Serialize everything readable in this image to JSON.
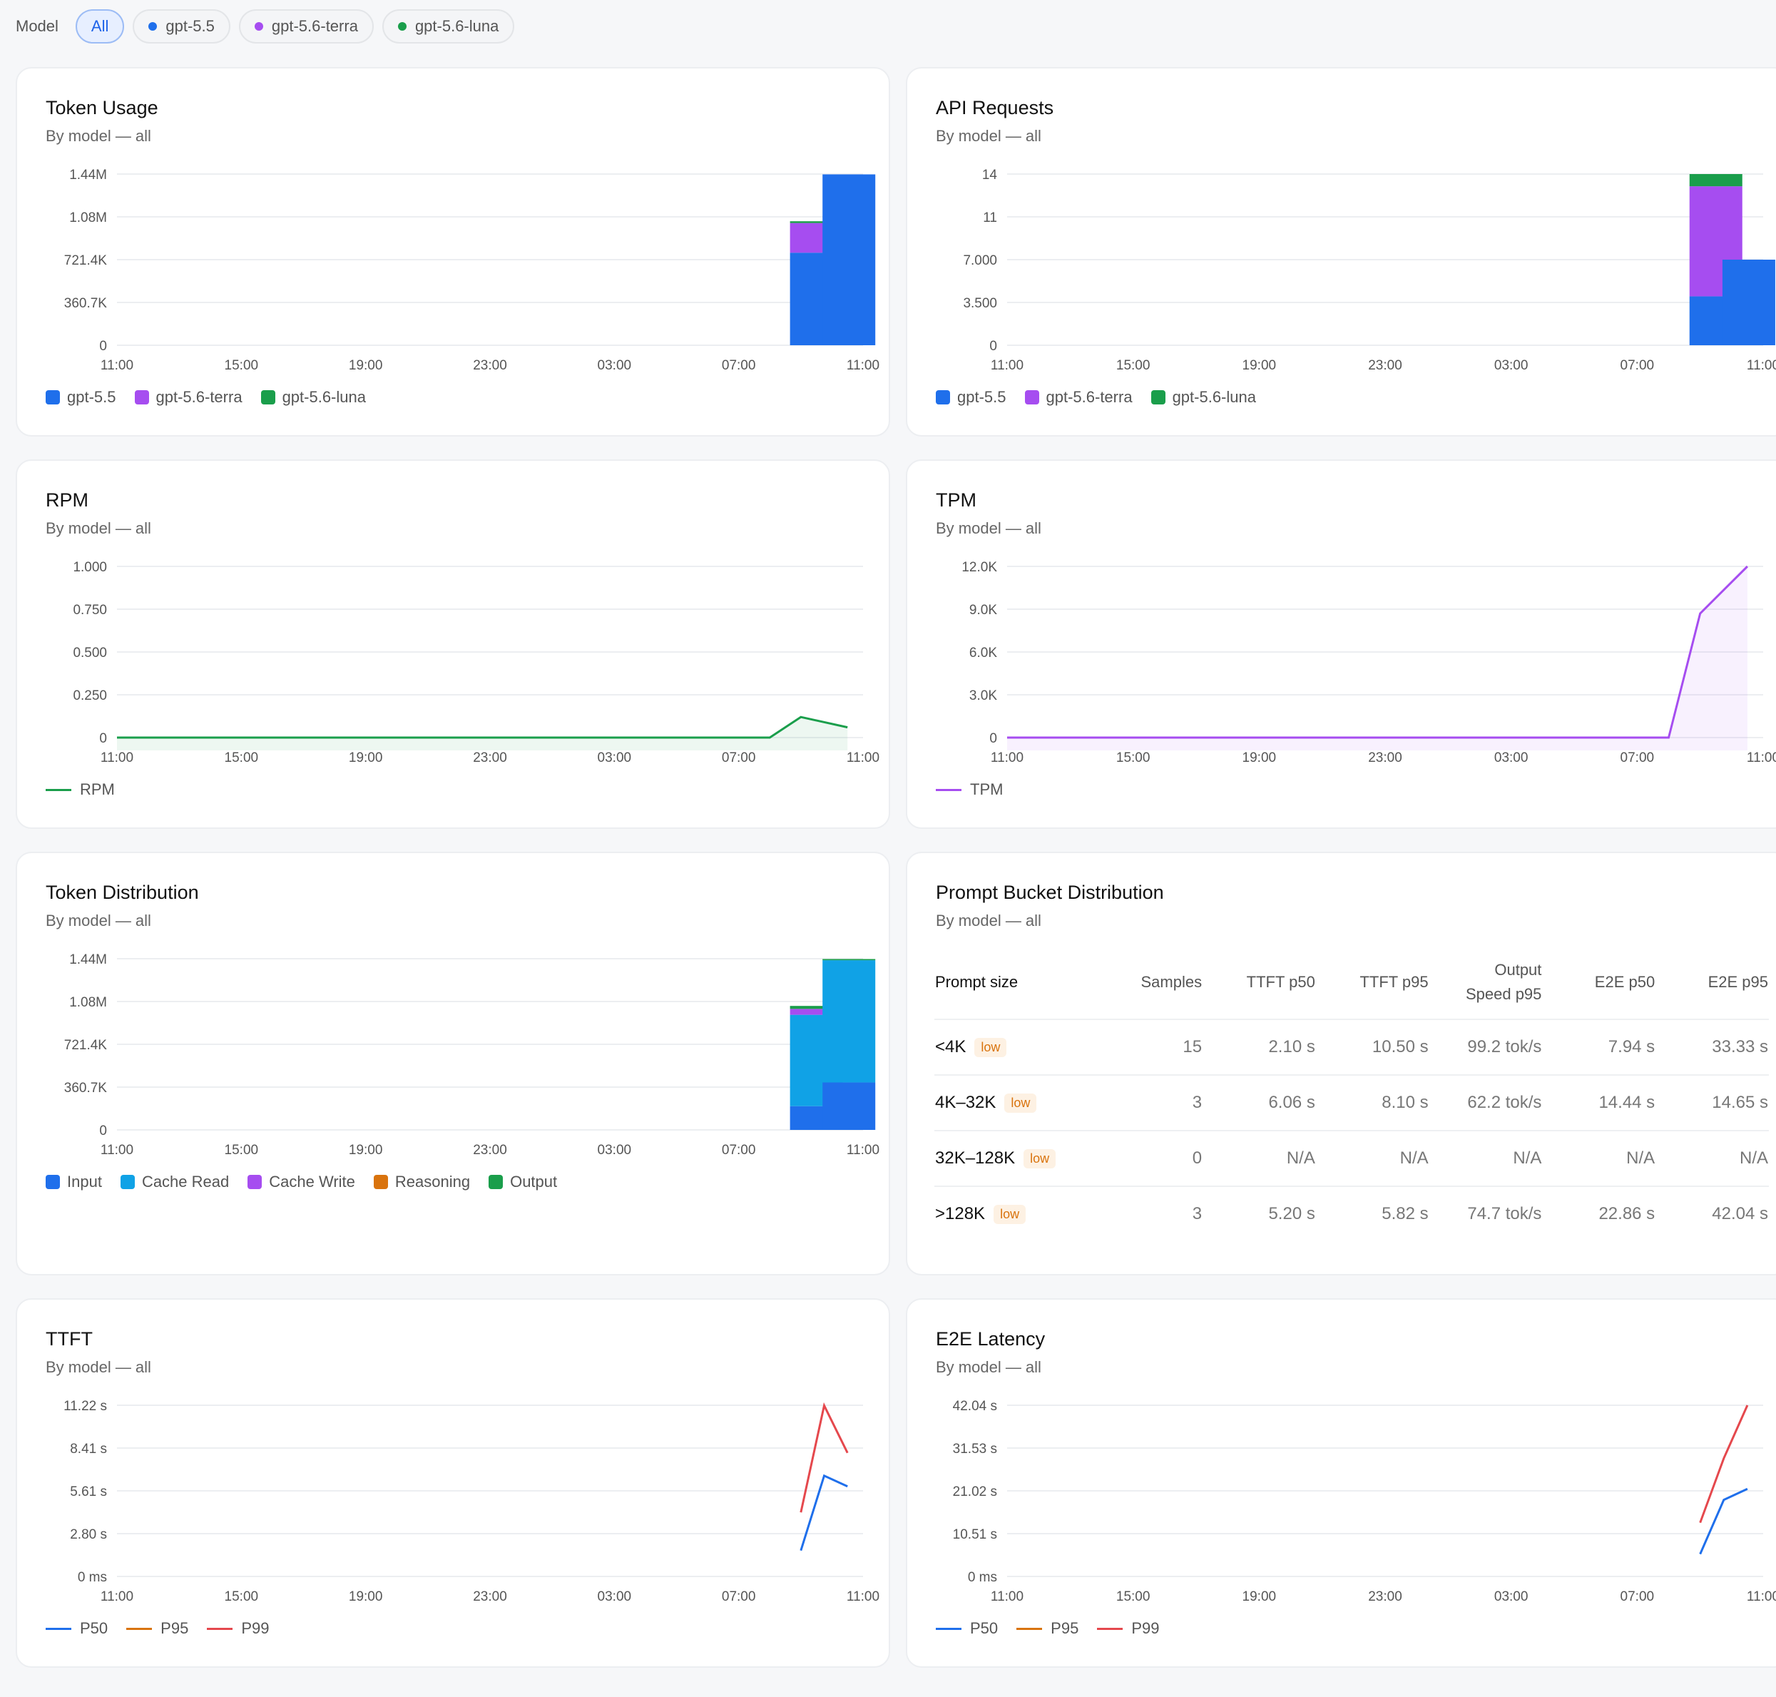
{
  "filter": {
    "label": "Model",
    "chips": [
      {
        "label": "All",
        "color": ""
      },
      {
        "label": "gpt-5.5",
        "color": "#1f6feb"
      },
      {
        "label": "gpt-5.6-terra",
        "color": "#a64df0"
      },
      {
        "label": "gpt-5.6-luna",
        "color": "#1a9e4b"
      }
    ]
  },
  "xticks": [
    "11:00",
    "15:00",
    "19:00",
    "23:00",
    "03:00",
    "07:00",
    "11:00"
  ],
  "cards": {
    "token_usage": {
      "title": "Token Usage",
      "subtitle": "By model — all",
      "legend": [
        {
          "label": "gpt-5.5",
          "color": "#1f6feb"
        },
        {
          "label": "gpt-5.6-terra",
          "color": "#a64df0"
        },
        {
          "label": "gpt-5.6-luna",
          "color": "#1a9e4b"
        }
      ]
    },
    "api_requests": {
      "title": "API Requests",
      "subtitle": "By model — all",
      "legend": [
        {
          "label": "gpt-5.5",
          "color": "#1f6feb"
        },
        {
          "label": "gpt-5.6-terra",
          "color": "#a64df0"
        },
        {
          "label": "gpt-5.6-luna",
          "color": "#1a9e4b"
        }
      ]
    },
    "rpm": {
      "title": "RPM",
      "subtitle": "By model — all",
      "legend": [
        {
          "label": "RPM",
          "color": "#1a9e4b"
        }
      ]
    },
    "tpm": {
      "title": "TPM",
      "subtitle": "By model — all",
      "legend": [
        {
          "label": "TPM",
          "color": "#a64df0"
        }
      ]
    },
    "token_distribution": {
      "title": "Token Distribution",
      "subtitle": "By model — all",
      "legend": [
        {
          "label": "Input",
          "color": "#1f6feb"
        },
        {
          "label": "Cache Read",
          "color": "#10a2e6"
        },
        {
          "label": "Cache Write",
          "color": "#a64df0"
        },
        {
          "label": "Reasoning",
          "color": "#d9730d"
        },
        {
          "label": "Output",
          "color": "#1a9e4b"
        }
      ]
    },
    "prompt_bucket": {
      "title": "Prompt Bucket Distribution",
      "subtitle": "By model — all",
      "columns": [
        {
          "line1": "Prompt size",
          "line2": ""
        },
        {
          "line1": "Samples",
          "line2": ""
        },
        {
          "line1": "TTFT p50",
          "line2": ""
        },
        {
          "line1": "TTFT p95",
          "line2": ""
        },
        {
          "line1": "Output",
          "line2": "Speed p95"
        },
        {
          "line1": "E2E p50",
          "line2": ""
        },
        {
          "line1": "E2E p95",
          "line2": ""
        }
      ],
      "rows": [
        {
          "size": "<4K",
          "badge": "low",
          "cells": [
            "15",
            "2.10 s",
            "10.50 s",
            "99.2 tok/s",
            "7.94 s",
            "33.33 s"
          ]
        },
        {
          "size": "4K–32K",
          "badge": "low",
          "cells": [
            "3",
            "6.06 s",
            "8.10 s",
            "62.2 tok/s",
            "14.44 s",
            "14.65 s"
          ]
        },
        {
          "size": "32K–128K",
          "badge": "low",
          "cells": [
            "0",
            "N/A",
            "N/A",
            "N/A",
            "N/A",
            "N/A"
          ]
        },
        {
          "size": ">128K",
          "badge": "low",
          "cells": [
            "3",
            "5.20 s",
            "5.82 s",
            "74.7 tok/s",
            "22.86 s",
            "42.04 s"
          ]
        }
      ]
    },
    "ttft": {
      "title": "TTFT",
      "subtitle": "By model — all",
      "legend": [
        {
          "label": "P50",
          "color": "#1f6feb"
        },
        {
          "label": "P95",
          "color": "#d9730d"
        },
        {
          "label": "P99",
          "color": "#e5484d"
        }
      ]
    },
    "e2e": {
      "title": "E2E Latency",
      "subtitle": "By model — all",
      "legend": [
        {
          "label": "P50",
          "color": "#1f6feb"
        },
        {
          "label": "P95",
          "color": "#d9730d"
        },
        {
          "label": "P99",
          "color": "#e5484d"
        }
      ]
    }
  },
  "chart_data": [
    {
      "id": "token_usage",
      "type": "bar",
      "stacked": true,
      "x_labels": [
        "09:00",
        "10:00"
      ],
      "series": [
        {
          "name": "gpt-5.5",
          "color": "#1f6feb",
          "values": [
            780000,
            1440000
          ]
        },
        {
          "name": "gpt-5.6-terra",
          "color": "#a64df0",
          "values": [
            250000,
            0
          ]
        },
        {
          "name": "gpt-5.6-luna",
          "color": "#1a9e4b",
          "values": [
            15000,
            0
          ]
        }
      ],
      "yticks": [
        "0",
        "360.7K",
        "721.4K",
        "1.08M",
        "1.44M"
      ],
      "ylim": [
        0,
        1442800
      ]
    },
    {
      "id": "api_requests",
      "type": "bar",
      "stacked": true,
      "x_labels": [
        "09:00",
        "10:00"
      ],
      "series": [
        {
          "name": "gpt-5.5",
          "color": "#1f6feb",
          "values": [
            4,
            7
          ]
        },
        {
          "name": "gpt-5.6-terra",
          "color": "#a64df0",
          "values": [
            9,
            0
          ]
        },
        {
          "name": "gpt-5.6-luna",
          "color": "#1a9e4b",
          "values": [
            1,
            0
          ]
        }
      ],
      "yticks": [
        "0",
        "3.500",
        "7.000",
        "11",
        "14"
      ],
      "ylim": [
        0,
        14
      ]
    },
    {
      "id": "rpm",
      "type": "area",
      "points": [
        [
          "11:00",
          0
        ],
        [
          "08:00",
          0
        ],
        [
          "09:00",
          0.12
        ],
        [
          "10:30",
          0.06
        ]
      ],
      "series": [
        {
          "name": "RPM",
          "color": "#1a9e4b"
        }
      ],
      "yticks": [
        "0",
        "0.250",
        "0.500",
        "0.750",
        "1.000"
      ],
      "ylim": [
        0,
        1
      ]
    },
    {
      "id": "tpm",
      "type": "area",
      "points": [
        [
          "11:00",
          0
        ],
        [
          "08:00",
          0
        ],
        [
          "09:00",
          8700
        ],
        [
          "10:30",
          12000
        ]
      ],
      "series": [
        {
          "name": "TPM",
          "color": "#a64df0"
        }
      ],
      "yticks": [
        "0",
        "3.0K",
        "6.0K",
        "9.0K",
        "12.0K"
      ],
      "ylim": [
        0,
        12000
      ]
    },
    {
      "id": "token_distribution",
      "type": "bar",
      "stacked": true,
      "x_labels": [
        "09:00",
        "10:00"
      ],
      "series": [
        {
          "name": "Input",
          "color": "#1f6feb",
          "values": [
            200000,
            400000
          ]
        },
        {
          "name": "Cache Read",
          "color": "#10a2e6",
          "values": [
            770000,
            1030000
          ]
        },
        {
          "name": "Cache Write",
          "color": "#a64df0",
          "values": [
            50000,
            0
          ]
        },
        {
          "name": "Reasoning",
          "color": "#d9730d",
          "values": [
            0,
            0
          ]
        },
        {
          "name": "Output",
          "color": "#1a9e4b",
          "values": [
            25000,
            10000
          ]
        }
      ],
      "yticks": [
        "0",
        "360.7K",
        "721.4K",
        "1.08M",
        "1.44M"
      ],
      "ylim": [
        0,
        1442800
      ]
    },
    {
      "id": "ttft",
      "type": "line",
      "series": [
        {
          "name": "P50",
          "color": "#1f6feb",
          "points": [
            [
              "09:00",
              1.7
            ],
            [
              "09:45",
              6.6
            ],
            [
              "10:30",
              5.9
            ]
          ]
        },
        {
          "name": "P95",
          "color": "#d9730d",
          "points": []
        },
        {
          "name": "P99",
          "color": "#e5484d",
          "points": [
            [
              "09:00",
              4.2
            ],
            [
              "09:45",
              11.2
            ],
            [
              "10:30",
              8.1
            ]
          ]
        }
      ],
      "yticks": [
        "0 ms",
        "2.80 s",
        "5.61 s",
        "8.41 s",
        "11.22 s"
      ],
      "ylim": [
        0,
        11.22
      ]
    },
    {
      "id": "e2e",
      "type": "line",
      "series": [
        {
          "name": "P50",
          "color": "#1f6feb",
          "points": [
            [
              "09:00",
              5.5
            ],
            [
              "09:45",
              18.8
            ],
            [
              "10:30",
              21.5
            ]
          ]
        },
        {
          "name": "P95",
          "color": "#d9730d",
          "points": []
        },
        {
          "name": "P99",
          "color": "#e5484d",
          "points": [
            [
              "09:00",
              13.2
            ],
            [
              "09:45",
              29.0
            ],
            [
              "10:30",
              42.04
            ]
          ]
        }
      ],
      "yticks": [
        "0 ms",
        "10.51 s",
        "21.02 s",
        "31.53 s",
        "42.04 s"
      ],
      "ylim": [
        0,
        42.04
      ]
    }
  ]
}
